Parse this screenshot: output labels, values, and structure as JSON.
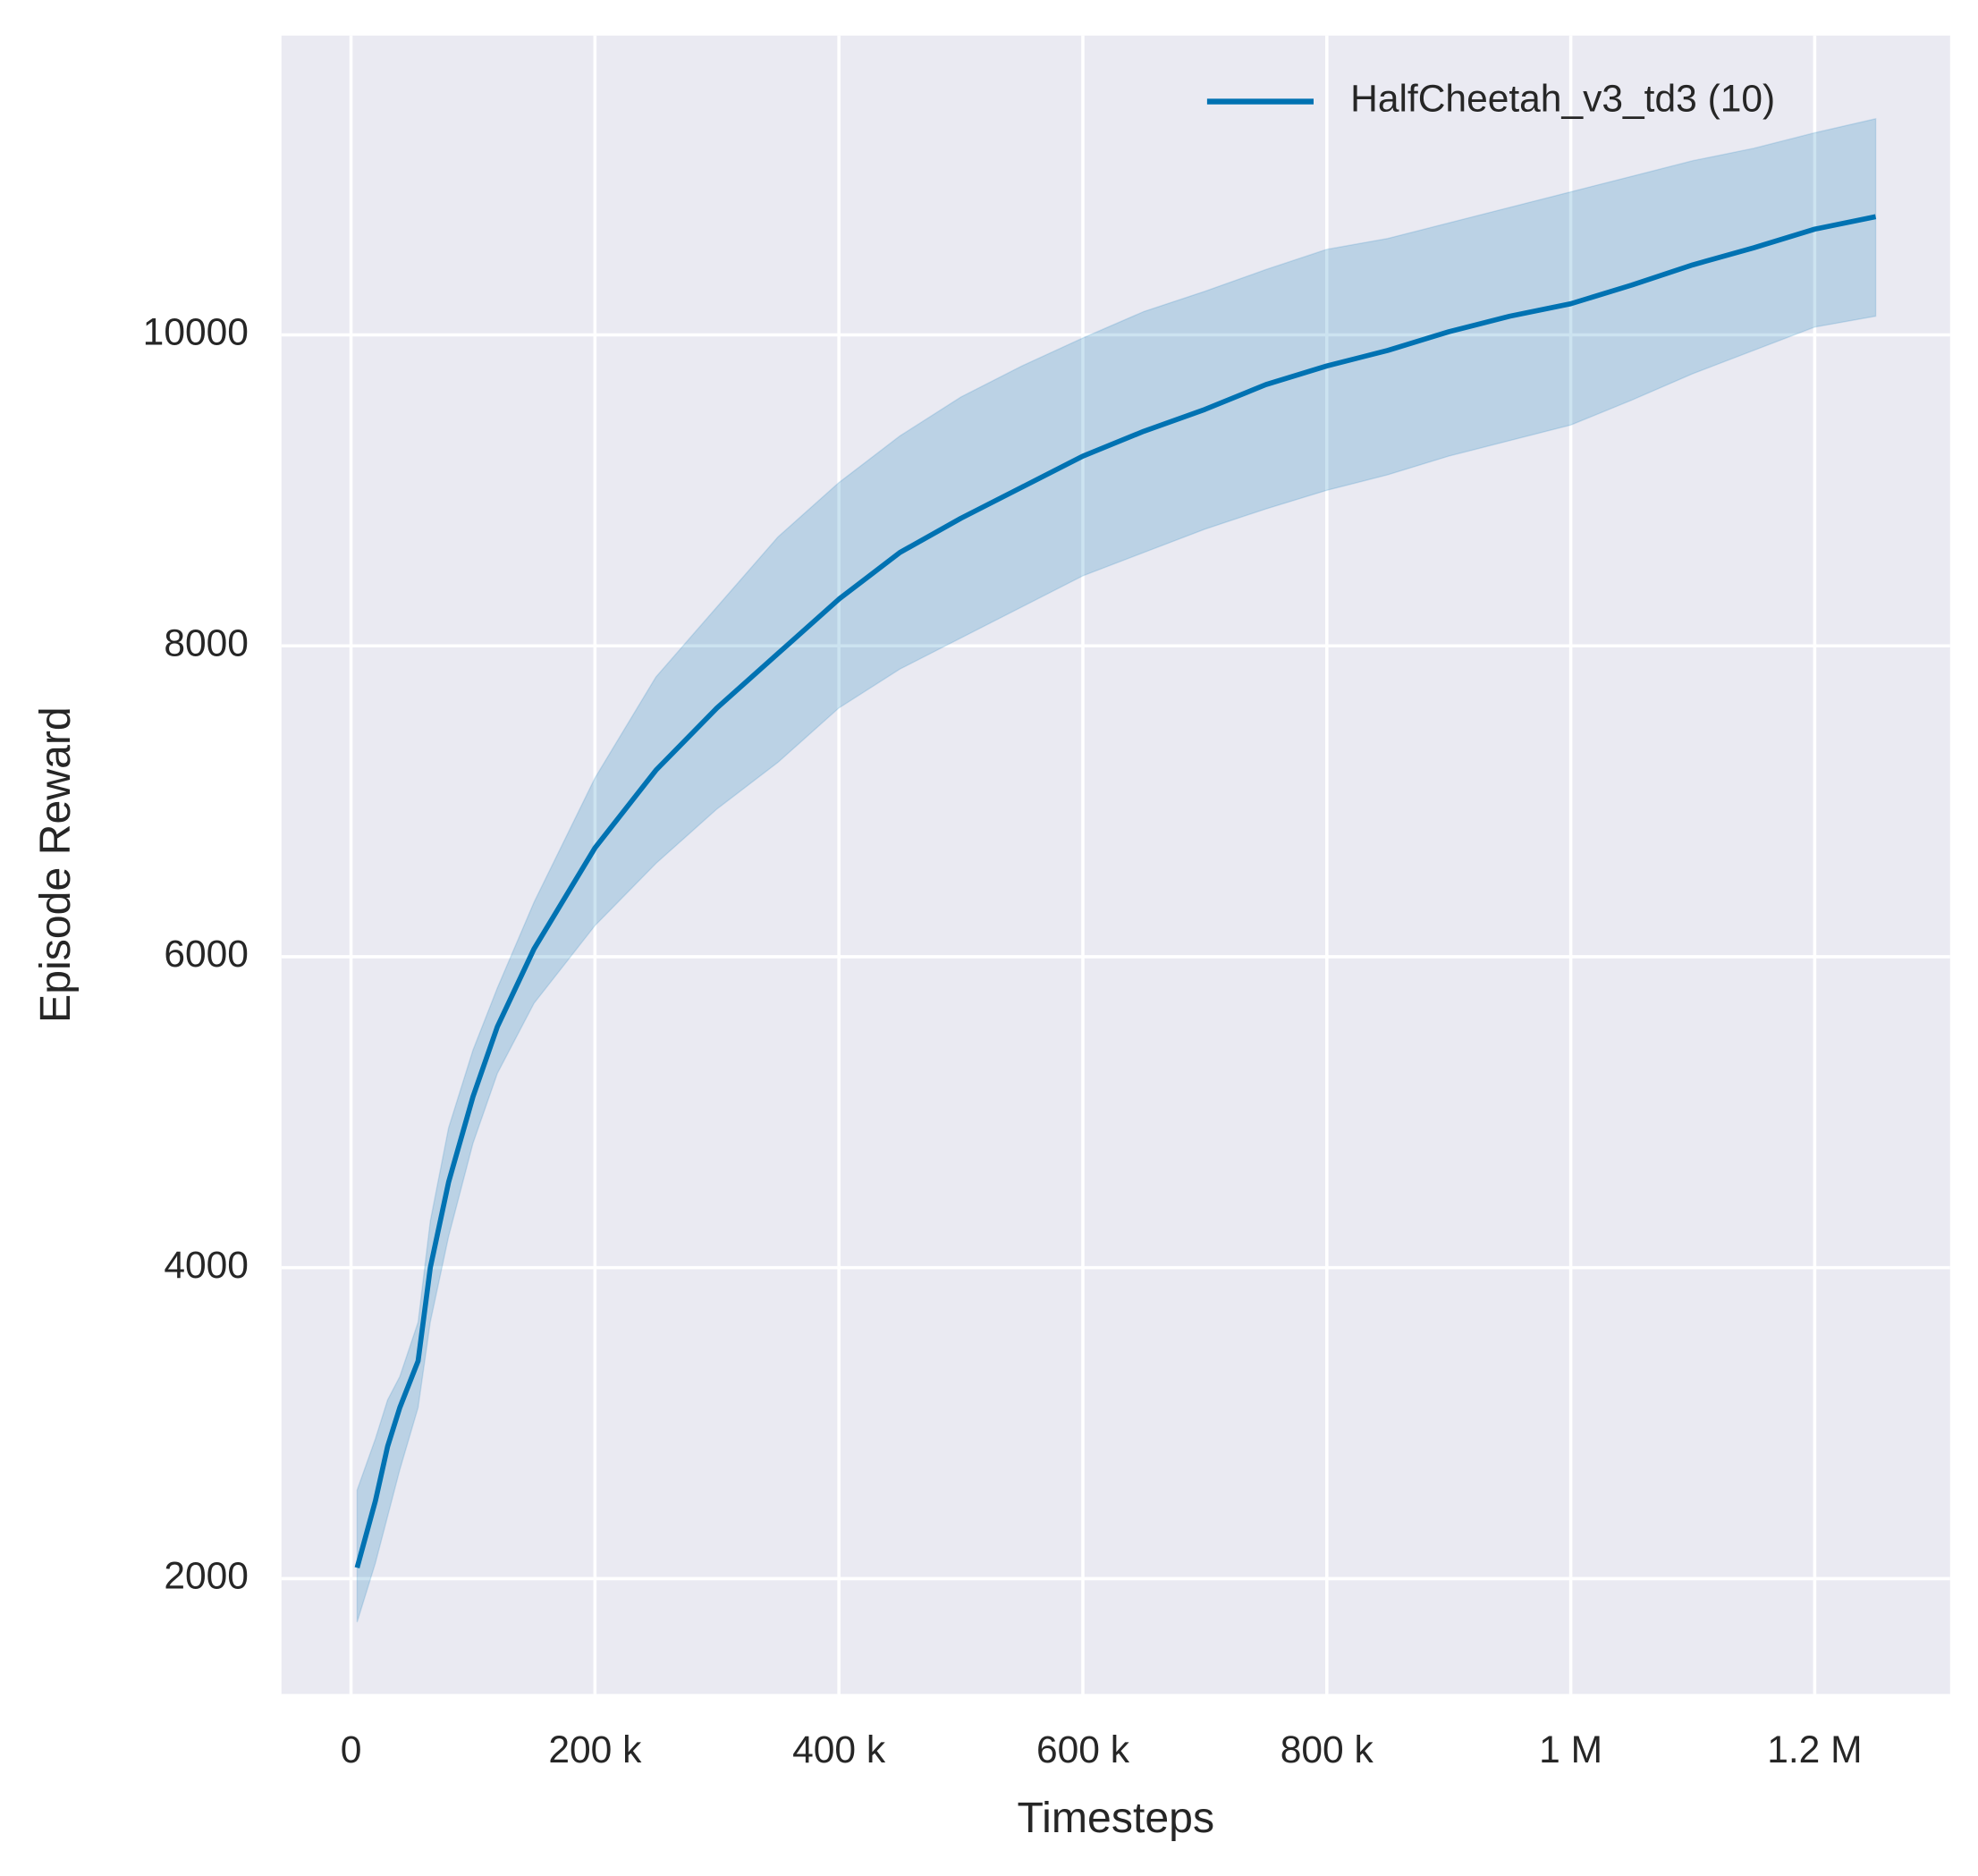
{
  "chart_data": {
    "type": "line",
    "xlabel": "Timesteps",
    "ylabel": "Episode Reward",
    "x": [
      5000,
      20000,
      30000,
      40000,
      55000,
      65000,
      80000,
      100000,
      120000,
      150000,
      200000,
      250000,
      300000,
      350000,
      400000,
      450000,
      500000,
      550000,
      600000,
      650000,
      700000,
      750000,
      800000,
      850000,
      900000,
      950000,
      1000000,
      1050000,
      1100000,
      1150000,
      1200000,
      1250000
    ],
    "series": [
      {
        "name": "HalfCheetah_v3_td3 (10)",
        "color": "#0072b2",
        "values": [
          2070,
          2500,
          2850,
          3100,
          3400,
          4000,
          4550,
          5100,
          5550,
          6050,
          6700,
          7200,
          7600,
          7950,
          8300,
          8600,
          8820,
          9020,
          9220,
          9380,
          9520,
          9680,
          9800,
          9900,
          10020,
          10120,
          10200,
          10320,
          10450,
          10560,
          10680,
          10760
        ],
        "lower": [
          1720,
          2100,
          2400,
          2700,
          3100,
          3650,
          4200,
          4800,
          5250,
          5700,
          6200,
          6600,
          6950,
          7250,
          7600,
          7850,
          8050,
          8250,
          8450,
          8600,
          8750,
          8880,
          9000,
          9100,
          9220,
          9320,
          9420,
          9580,
          9750,
          9900,
          10050,
          10120
        ],
        "upper": [
          2570,
          2900,
          3150,
          3300,
          3650,
          4300,
          4900,
          5400,
          5800,
          6350,
          7150,
          7800,
          8250,
          8700,
          9050,
          9350,
          9600,
          9800,
          9980,
          10150,
          10280,
          10420,
          10550,
          10620,
          10720,
          10820,
          10920,
          11020,
          11120,
          11200,
          11300,
          11390
        ]
      }
    ],
    "xlim": [
      -57000,
      1311000
    ],
    "xticks": [
      0,
      {
        "value": 200000,
        "label": "200 k"
      },
      {
        "value": 400000,
        "label": "400 k"
      },
      {
        "value": 600000,
        "label": "600 k"
      },
      {
        "value": 800000,
        "label": "800 k"
      },
      {
        "value": 1000000,
        "label": "1 M"
      },
      {
        "value": 1200000,
        "label": "1.2 M"
      }
    ],
    "ylim": [
      1258,
      11925
    ],
    "yticks": [
      2000,
      4000,
      6000,
      8000,
      10000
    ],
    "grid": true,
    "legend": "upper right"
  }
}
